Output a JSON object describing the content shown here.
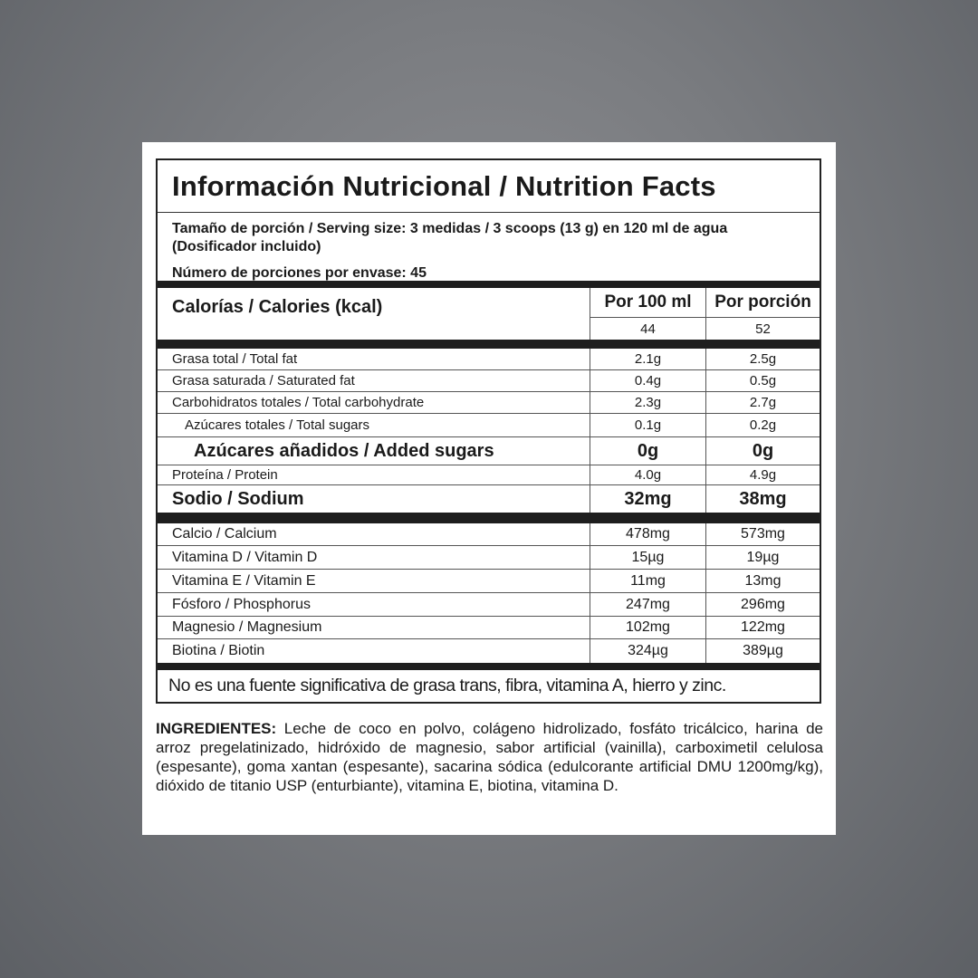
{
  "title": "Información Nutricional / Nutrition Facts",
  "serving_size": "Tamaño de porción / Serving size: 3 medidas / 3 scoops (13 g) en 120 ml de agua (Dosificador incluido)",
  "servings_per_container": "Número de porciones por envase: 45",
  "calories": {
    "label": "Calorías / Calories (kcal)",
    "col1_header": "Por 100 ml",
    "col2_header": "Por porción",
    "per_100ml": "44",
    "per_serving": "52"
  },
  "nutrients": [
    {
      "label": "Grasa total / Total fat",
      "per_100ml": "2.1g",
      "per_serving": "2.5g",
      "style": "sm"
    },
    {
      "label": "Grasa saturada / Saturated fat",
      "per_100ml": "0.4g",
      "per_serving": "0.5g",
      "style": "sm"
    },
    {
      "label": "Carbohidratos totales / Total carbohydrate",
      "per_100ml": "2.3g",
      "per_serving": "2.7g",
      "style": "sm"
    },
    {
      "label": "Azúcares totales / Total sugars",
      "per_100ml": "0.1g",
      "per_serving": "0.2g",
      "style": "sm",
      "indent": true
    },
    {
      "label": "Azúcares añadidos / Added sugars",
      "per_100ml": "0g",
      "per_serving": "0g",
      "style": "big",
      "indent": true
    },
    {
      "label": "Proteína / Protein",
      "per_100ml": "4.0g",
      "per_serving": "4.9g",
      "style": "sm"
    },
    {
      "label": "Sodio / Sodium",
      "per_100ml": "32mg",
      "per_serving": "38mg",
      "style": "big"
    }
  ],
  "micronutrients": [
    {
      "label": "Calcio / Calcium",
      "per_100ml": "478mg",
      "per_serving": "573mg"
    },
    {
      "label": "Vitamina D / Vitamin D",
      "per_100ml": "15µg",
      "per_serving": "19µg"
    },
    {
      "label": "Vitamina E / Vitamin E",
      "per_100ml": "11mg",
      "per_serving": "13mg"
    },
    {
      "label": "Fósforo  / Phosphorus",
      "per_100ml": "247mg",
      "per_serving": "296mg"
    },
    {
      "label": "Magnesio / Magnesium",
      "per_100ml": "102mg",
      "per_serving": "122mg"
    },
    {
      "label": "Biotina / Biotin",
      "per_100ml": "324µg",
      "per_serving": "389µg"
    }
  ],
  "footnote": "No es una fuente significativa de grasa trans, fibra, vitamina A, hierro y zinc.",
  "ingredients": {
    "label": "INGREDIENTES:",
    "text": "Leche de coco en polvo, colágeno hidrolizado, fosfáto tricálcico, harina de arroz pregelatinizado, hidróxido de magnesio, sabor artificial (vainilla), carboximetil celulosa (espesante), goma xantan (espesante), sacarina sódica (edulcorante artificial DMU 1200mg/kg), dióxido de titanio USP (enturbiante), vitamina E, biotina, vitamina D."
  }
}
